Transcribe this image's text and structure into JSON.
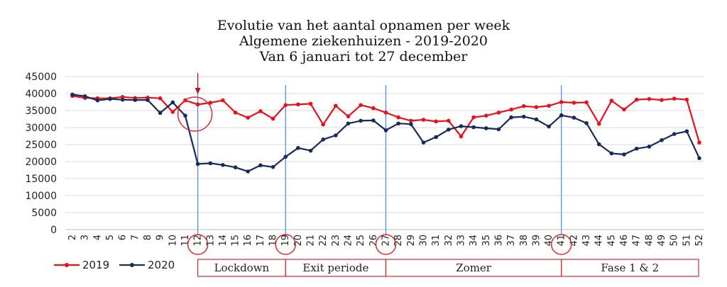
{
  "chart_data": {
    "type": "line",
    "title_lines": [
      "Evolutie van het aantal opnamen per week",
      "Algemene ziekenhuizen - 2019-2020",
      "Van 6 januari tot 27 december"
    ],
    "xlabel": "",
    "ylabel": "",
    "ylim": [
      0,
      45000
    ],
    "yticks": [
      0,
      5000,
      10000,
      15000,
      20000,
      25000,
      30000,
      35000,
      40000,
      45000
    ],
    "x": [
      2,
      3,
      4,
      5,
      6,
      7,
      8,
      9,
      10,
      11,
      12,
      13,
      14,
      15,
      16,
      17,
      18,
      19,
      20,
      21,
      22,
      23,
      24,
      25,
      26,
      27,
      28,
      29,
      30,
      31,
      32,
      33,
      34,
      35,
      36,
      37,
      38,
      39,
      40,
      41,
      42,
      43,
      44,
      45,
      46,
      47,
      48,
      49,
      50,
      51,
      52
    ],
    "grid": true,
    "legend_position": "bottom-left",
    "series": [
      {
        "name": "2019",
        "color": "#e8101c",
        "values": [
          39300,
          38700,
          38600,
          38600,
          39000,
          38700,
          38800,
          38600,
          34600,
          38000,
          36800,
          37300,
          38000,
          34400,
          32900,
          34800,
          32600,
          36600,
          36800,
          37000,
          30900,
          36400,
          33300,
          36600,
          35700,
          34400,
          33000,
          32000,
          32300,
          31800,
          32000,
          27400,
          33000,
          33500,
          34400,
          35300,
          36300,
          36000,
          36400,
          37500,
          37300,
          37400,
          31100,
          37900,
          35300,
          38200,
          38400,
          38100,
          38500,
          38200,
          25600
        ]
      },
      {
        "name": "2020",
        "color": "#172a5c",
        "values": [
          39700,
          39200,
          38000,
          38400,
          38200,
          38100,
          38100,
          34300,
          37400,
          33500,
          19300,
          19500,
          19000,
          18300,
          17100,
          18900,
          18400,
          21400,
          24000,
          23200,
          26500,
          27700,
          31200,
          32000,
          32100,
          29200,
          31200,
          31000,
          25600,
          27200,
          29400,
          30400,
          30100,
          29800,
          29500,
          33000,
          33200,
          32400,
          30300,
          33600,
          32900,
          31300,
          25100,
          22400,
          22100,
          23800,
          24400,
          26300,
          28100,
          28900,
          21000
        ]
      }
    ],
    "markers": {
      "arrow_week": 12,
      "circled_weeks": [
        12,
        19,
        27,
        41
      ],
      "big_circle_week": 12,
      "vertical_line_weeks": [
        12,
        19,
        27,
        41
      ]
    },
    "phases": [
      {
        "label": "Lockdown",
        "from_week": 12,
        "to_week": 19
      },
      {
        "label": "Exit periode",
        "from_week": 19,
        "to_week": 27
      },
      {
        "label": "Zomer",
        "from_week": 27,
        "to_week": 41
      },
      {
        "label": "Fase 1 & 2",
        "from_week": 41,
        "to_week": 52
      }
    ]
  }
}
